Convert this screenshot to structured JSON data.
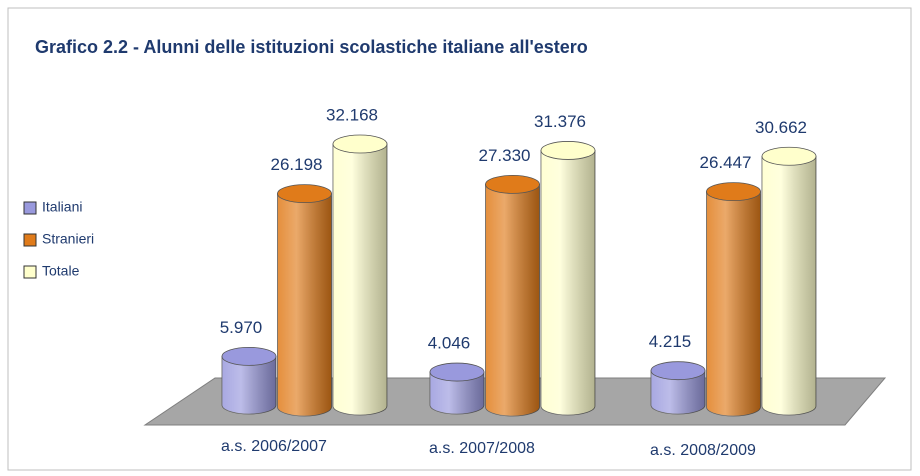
{
  "chart_data": {
    "type": "bar3d",
    "title": "Grafico 2.2 - Alunni delle istituzioni scolastiche italiane all'estero",
    "categories": [
      "a.s. 2006/2007",
      "a.s. 2007/2008",
      "a.s. 2008/2009"
    ],
    "series": [
      {
        "name": "Italiani",
        "color": "#9999dd",
        "values": [
          5970,
          4046,
          4215
        ],
        "value_labels": [
          "5.970",
          "4.046",
          "4.215"
        ]
      },
      {
        "name": "Stranieri",
        "color": "#e07b1a",
        "values": [
          26198,
          27330,
          26447
        ],
        "value_labels": [
          "26.198",
          "27.330",
          "26.447"
        ]
      },
      {
        "name": "Totale",
        "color": "#ffffcc",
        "values": [
          32168,
          31376,
          30662
        ],
        "value_labels": [
          "32.168",
          "31.376",
          "30.662"
        ]
      }
    ],
    "legend": "left"
  }
}
